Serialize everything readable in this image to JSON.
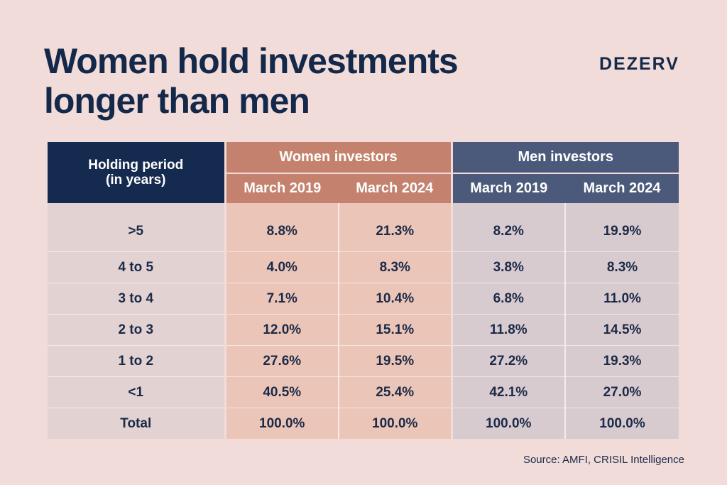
{
  "header": {
    "title_line1": "Women hold investments",
    "title_line2": "longer than men",
    "brand": "DEZERV"
  },
  "footer": {
    "source": "Source: AMFI, CRISIL Intelligence"
  },
  "colors": {
    "background": "#f1dcd9",
    "navy": "#142a4e",
    "women_header": "#c4826e",
    "men_header": "#4b5a7b",
    "women_cell": "#ebc6b8",
    "men_cell": "#d8cbd0"
  },
  "chart_data": {
    "type": "table",
    "title": "Women hold investments longer than men",
    "row_header": "Holding period\n(in years)",
    "groups": [
      {
        "name": "Women investors",
        "columns": [
          "March 2019",
          "March 2024"
        ]
      },
      {
        "name": "Men investors",
        "columns": [
          "March 2019",
          "March 2024"
        ]
      }
    ],
    "rows": [
      {
        "label": ">5",
        "values": [
          "8.8%",
          "21.3%",
          "8.2%",
          "19.9%"
        ]
      },
      {
        "label": "4 to 5",
        "values": [
          "4.0%",
          "8.3%",
          "3.8%",
          "8.3%"
        ]
      },
      {
        "label": "3 to 4",
        "values": [
          "7.1%",
          "10.4%",
          "6.8%",
          "11.0%"
        ]
      },
      {
        "label": "2 to 3",
        "values": [
          "12.0%",
          "15.1%",
          "11.8%",
          "14.5%"
        ]
      },
      {
        "label": "1 to 2",
        "values": [
          "27.6%",
          "19.5%",
          "27.2%",
          "19.3%"
        ]
      },
      {
        "label": "<1",
        "values": [
          "40.5%",
          "25.4%",
          "42.1%",
          "27.0%"
        ]
      },
      {
        "label": "Total",
        "values": [
          "100.0%",
          "100.0%",
          "100.0%",
          "100.0%"
        ]
      }
    ]
  }
}
